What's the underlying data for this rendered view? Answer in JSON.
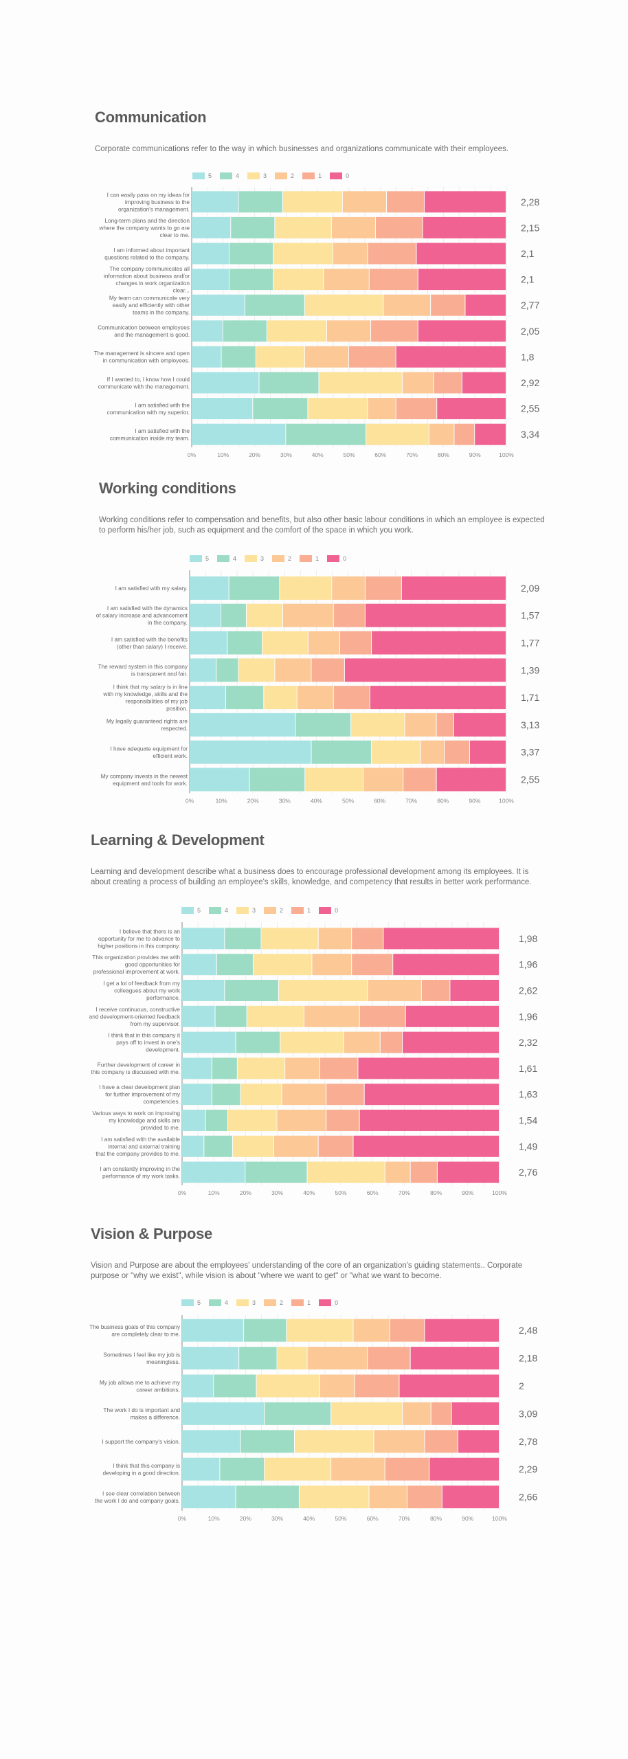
{
  "legend": [
    {
      "label": "5",
      "color": "#a8e3e3"
    },
    {
      "label": "4",
      "color": "#9cdcc4"
    },
    {
      "label": "3",
      "color": "#fde29b"
    },
    {
      "label": "2",
      "color": "#fcc895"
    },
    {
      "label": "1",
      "color": "#f9ae93"
    },
    {
      "label": "0",
      "color": "#f06292"
    }
  ],
  "xticks": [
    "0%",
    "10%",
    "20%",
    "30%",
    "40%",
    "50%",
    "60%",
    "70%",
    "80%",
    "90%",
    "100%"
  ],
  "sections": [
    {
      "title": "Communication",
      "description": "Corporate communications refer to the way in which businesses and organizations communicate with their employees."
    },
    {
      "title": "Working conditions",
      "description": "Working conditions refer to compensation and benefits, but also other basic labour conditions in which an employee is expected to perform his/her job, such as equipment and the comfort of the space in which you work."
    },
    {
      "title": "Learning & Development",
      "description": "Learning and development describe what a business does to encourage professional development among its employees. It is about creating a process of building an employee's skills, knowledge, and competency that results in better work performance."
    },
    {
      "title": "Vision & Purpose",
      "description": "Vision and Purpose are about the employees' understanding of the core of an organization's guiding statements.. Corporate purpose or \"why we exist\", while vision is about \"where we want to get\" or \"what we want to become."
    }
  ],
  "chart_data": [
    {
      "type": "bar",
      "stacked": true,
      "orientation": "horizontal",
      "title": "Communication",
      "series_names": [
        "5",
        "4",
        "3",
        "2",
        "1",
        "0"
      ],
      "xlim": [
        0,
        100
      ],
      "xlabel_unit": "%",
      "legend_position": "top",
      "rows": [
        {
          "label": "I can easily pass on my ideas for improving business to the organization's management.",
          "values": [
            15,
            14,
            19,
            14,
            12,
            26
          ],
          "score": "2,28"
        },
        {
          "label": "Long-term plans and the direction where the company wants to go are clear to me.",
          "values": [
            12.5,
            14,
            18,
            14,
            15,
            26.5
          ],
          "score": "2,15"
        },
        {
          "label": "I am informed about important questions related to the company.",
          "values": [
            12,
            14,
            19,
            11,
            15.5,
            28.5
          ],
          "score": "2,1"
        },
        {
          "label": "The company communicates all information about business and/or changes in work organization clear...",
          "values": [
            12,
            14,
            16,
            14.5,
            15.5,
            28
          ],
          "score": "2,1"
        },
        {
          "label": "My team can communicate very easily and efficiently with other teams in the company.",
          "values": [
            17,
            19,
            25,
            15,
            11,
            13
          ],
          "score": "2,77"
        },
        {
          "label": "Communication between employees and the management is good.",
          "values": [
            10,
            14,
            19,
            14,
            15,
            28
          ],
          "score": "2,05"
        },
        {
          "label": "The management is sincere and open in communication with employees.",
          "values": [
            9.5,
            11,
            15.5,
            14,
            15,
            35
          ],
          "score": "1,8"
        },
        {
          "label": "If I wanted to, I know how I could communicate with the management.",
          "values": [
            21.5,
            19,
            26.5,
            10,
            9,
            14
          ],
          "score": "2,92"
        },
        {
          "label": "I am satisfied with the communication with my superior.",
          "values": [
            19.5,
            17.5,
            19,
            9,
            13,
            22
          ],
          "score": "2,55"
        },
        {
          "label": "I am satisfied with the communication inside my team.",
          "values": [
            30,
            25.5,
            20,
            8,
            6.5,
            10
          ],
          "score": "3,34"
        }
      ]
    },
    {
      "type": "bar",
      "stacked": true,
      "orientation": "horizontal",
      "title": "Working conditions",
      "series_names": [
        "5",
        "4",
        "3",
        "2",
        "1",
        "0"
      ],
      "xlim": [
        0,
        100
      ],
      "xlabel_unit": "%",
      "legend_position": "top",
      "rows": [
        {
          "label": "I am satisfied with my salary.",
          "values": [
            12.5,
            16,
            16.5,
            10.5,
            11.5,
            33
          ],
          "score": "2,09"
        },
        {
          "label": "I am satisfied with the dynamics of salary increase and advancement in the company.",
          "values": [
            10,
            8,
            11.5,
            16,
            10,
            44.5
          ],
          "score": "1,57"
        },
        {
          "label": "I am satisfied with the benefits (other than salary) I receive.",
          "values": [
            12,
            11,
            14.5,
            10,
            10,
            42.5
          ],
          "score": "1,77"
        },
        {
          "label": "The reward system in this company is transparent and fair.",
          "values": [
            8.5,
            7,
            11.5,
            11.5,
            10.5,
            51
          ],
          "score": "1,39"
        },
        {
          "label": "I think that my salary is in line with my knowledge, skills and the responsibilities of my job position.",
          "values": [
            11.5,
            12,
            10.5,
            11.5,
            11.5,
            43
          ],
          "score": "1,71"
        },
        {
          "label": "My legally guaranteed rights are respected.",
          "values": [
            33.5,
            17.5,
            17,
            10,
            5.5,
            16.5
          ],
          "score": "3,13"
        },
        {
          "label": "I have adequate equipment for efficient work.",
          "values": [
            38.5,
            19,
            15.5,
            7.5,
            8,
            11.5
          ],
          "score": "3,37"
        },
        {
          "label": "My company invests in the newest equipment and tools for work.",
          "values": [
            19,
            17.5,
            18.5,
            12.5,
            10.5,
            22
          ],
          "score": "2,55"
        }
      ]
    },
    {
      "type": "bar",
      "stacked": true,
      "orientation": "horizontal",
      "title": "Learning & Development",
      "series_names": [
        "5",
        "4",
        "3",
        "2",
        "1",
        "0"
      ],
      "xlim": [
        0,
        100
      ],
      "xlabel_unit": "%",
      "legend_position": "top",
      "rows": [
        {
          "label": "I believe that there is an opportunity for me to advance to higher positions in this company.",
          "values": [
            13.5,
            11.5,
            18,
            10.5,
            10,
            36.5
          ],
          "score": "1,98"
        },
        {
          "label": "This organization provides me with good opportunities for professional improvement at work.",
          "values": [
            11,
            11.5,
            18.5,
            12.5,
            13,
            33.5
          ],
          "score": "1,96"
        },
        {
          "label": "I get a lot of feedback from my colleagues about my work performance.",
          "values": [
            13.5,
            17,
            28,
            17,
            9,
            15.5
          ],
          "score": "2,62"
        },
        {
          "label": "I receive continuous, constructive and development-oriented feedback from my supervisor.",
          "values": [
            10.5,
            10,
            18,
            17.5,
            14.5,
            29.5
          ],
          "score": "1,96"
        },
        {
          "label": "I think that in this company it pays off to invest in one's development.",
          "values": [
            17,
            14,
            20,
            11.5,
            7,
            30.5
          ],
          "score": "2,32"
        },
        {
          "label": "Further development of career in this company is discussed with me.",
          "values": [
            9.5,
            8,
            15,
            11,
            12,
            44.5
          ],
          "score": "1,61"
        },
        {
          "label": "I have a clear development plan for further improvement of my competencies.",
          "values": [
            9.5,
            9,
            13,
            14,
            12,
            42.5
          ],
          "score": "1,63"
        },
        {
          "label": "Various ways to work on improving my knowledge and skills are provided to me.",
          "values": [
            7.5,
            7,
            15.5,
            15.5,
            10.5,
            44
          ],
          "score": "1,54"
        },
        {
          "label": "I am satisfied with the available internal and external training that the company provides to me.",
          "values": [
            7,
            9,
            13,
            14,
            11,
            46
          ],
          "score": "1,49"
        },
        {
          "label": "I am constantly improving in the performance of my work tasks.",
          "values": [
            20,
            19.5,
            24.5,
            8,
            8.5,
            19.5
          ],
          "score": "2,76"
        }
      ]
    },
    {
      "type": "bar",
      "stacked": true,
      "orientation": "horizontal",
      "title": "Vision & Purpose",
      "series_names": [
        "5",
        "4",
        "3",
        "2",
        "1",
        "0"
      ],
      "xlim": [
        0,
        100
      ],
      "xlabel_unit": "%",
      "legend_position": "top",
      "rows": [
        {
          "label": "The business goals of this company are completely clear to me.",
          "values": [
            19.5,
            13.5,
            21,
            11.5,
            11,
            23.5
          ],
          "score": "2,48"
        },
        {
          "label": "Sometimes I feel like my job is meaningless.",
          "values": [
            18,
            12,
            9.5,
            19,
            13.5,
            28
          ],
          "score": "2,18"
        },
        {
          "label": "My job allows me to achieve my career ambitions.",
          "values": [
            10,
            13.5,
            20,
            11,
            14,
            31.5
          ],
          "score": "2"
        },
        {
          "label": "The work I do is important and makes a difference.",
          "values": [
            26,
            21,
            22.5,
            9,
            6.5,
            15
          ],
          "score": "3,09"
        },
        {
          "label": "I support the company's vision.",
          "values": [
            18.5,
            17,
            25,
            16,
            10.5,
            13
          ],
          "score": "2,78"
        },
        {
          "label": "I think that this company is developing in a good direction.",
          "values": [
            12,
            14,
            21,
            17,
            14,
            22
          ],
          "score": "2,29"
        },
        {
          "label": "I see clear correlation between the work I do and company goals.",
          "values": [
            17,
            20,
            22,
            12,
            11,
            18
          ],
          "score": "2,66"
        }
      ]
    }
  ]
}
